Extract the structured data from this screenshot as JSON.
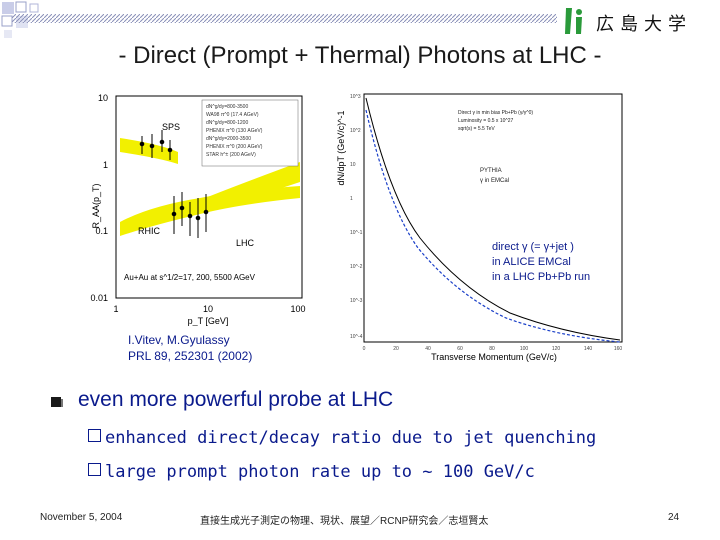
{
  "header": {
    "logo_text": "広島大学",
    "title": "- Direct (Prompt + Thermal) Photons at LHC -"
  },
  "figures": {
    "left_reference_line1": "I.Vitev, M.Gyulassy",
    "left_reference_line2": "PRL 89, 252301 (2002)",
    "left_plot": {
      "ylabel": "R_AA(p_T)",
      "xlabel": "p_T [GeV]",
      "yticks": [
        "10",
        "1",
        "0.1",
        "0.01"
      ],
      "xticks": [
        "1",
        "10",
        "100"
      ],
      "region_labels": [
        "SPS",
        "RHIC",
        "LHC"
      ],
      "caption": "Au+Au at s^1/2=17, 200, 5500 AGeV"
    },
    "right_plot": {
      "ylabel": "dN/dpT (GeV/c)^-1",
      "xlabel": "Transverse Momentum (GeV/c)",
      "legend_lines": [
        "PYTHIA",
        "γ in EMCal"
      ],
      "annotation_line1": "direct γ (= γ+jet )",
      "annotation_line2": "in ALICE EMCal",
      "annotation_line3": "in a LHC Pb+Pb run"
    }
  },
  "body": {
    "bullet_main": "even more powerful probe at LHC",
    "sub1": "enhanced direct/decay ratio due to jet quenching",
    "sub2": "large prompt photon rate up to ~ 100 GeV/c"
  },
  "footer": {
    "date": "November 5, 2004",
    "center": "直接生成光子測定の物理、現状、展望／RCNP研究会／志垣賢太",
    "page": "24"
  },
  "colors": {
    "text_blue": "#0a1a8c",
    "band_yellow": "#f2f000",
    "curve_blue": "#1a3fc8"
  }
}
